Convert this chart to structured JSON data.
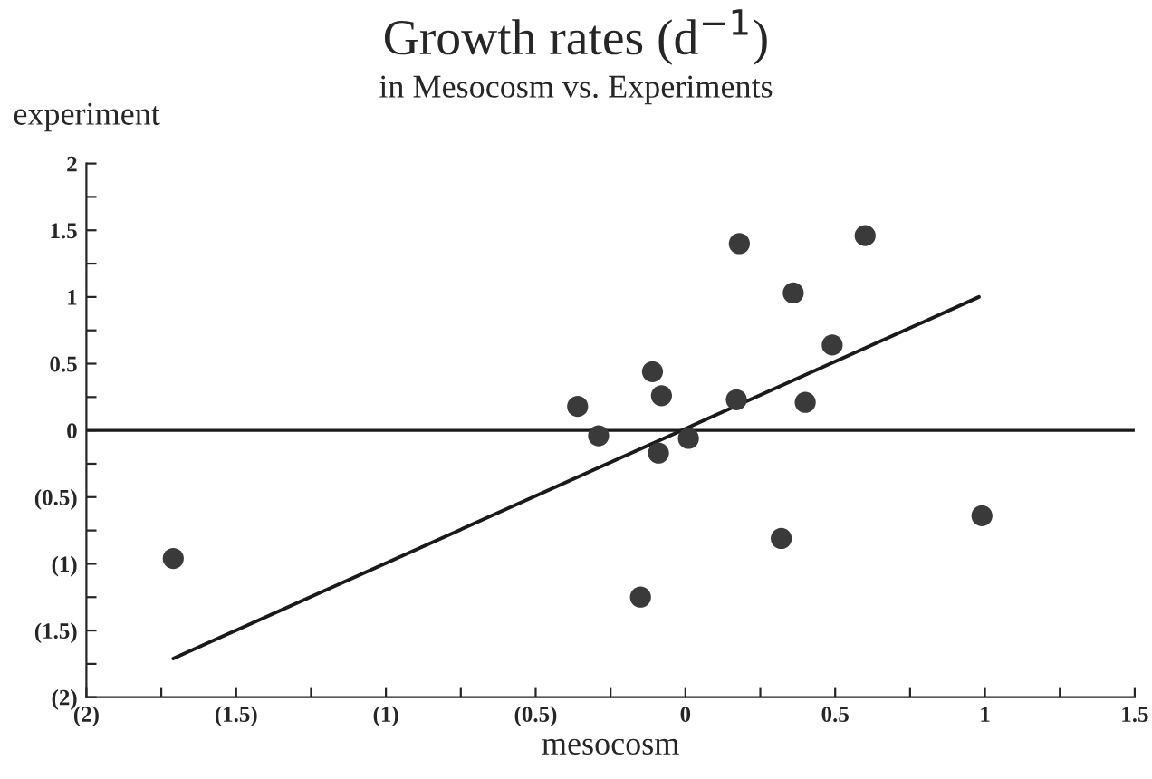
{
  "chart_data": {
    "type": "scatter",
    "title": "Growth rates (d$^{−1}$)",
    "subtitle": "in Mesocosm vs. Experiments",
    "xlabel": "mesocosm",
    "ylabel": "experiment",
    "series": [
      {
        "color": "#3a3a3a",
        "marker": "circle",
        "x": [
          -1.71,
          -0.36,
          -0.29,
          -0.11,
          -0.08,
          -0.09,
          0.01,
          -0.15,
          0.17,
          0.32,
          0.4,
          0.49,
          0.36,
          0.99,
          0.18,
          0.6
        ],
        "values": [
          -0.96,
          0.18,
          -0.04,
          0.44,
          0.26,
          -0.17,
          -0.06,
          -1.25,
          0.23,
          -0.81,
          0.21,
          0.64,
          1.03,
          -0.64,
          1.4,
          1.46
        ]
      },
      {
        "type": "line",
        "color": "#1a1a1a",
        "marker": "none",
        "x": [
          -1.71,
          0.98
        ],
        "values": [
          -1.71,
          1.0
        ]
      }
    ],
    "xlim": [
      -2,
      1.5
    ],
    "ylim": [
      -2,
      2
    ],
    "xticks": [
      {
        "value": -2,
        "label": "(2)"
      },
      {
        "value": -1.75,
        "label": null
      },
      {
        "value": -1.5,
        "label": "(1.5)"
      },
      {
        "value": -1.25,
        "label": null
      },
      {
        "value": -1,
        "label": "(1)"
      },
      {
        "value": -0.75,
        "label": null
      },
      {
        "value": -0.5,
        "label": "(0.5)"
      },
      {
        "value": -0.25,
        "label": null
      },
      0,
      {
        "value": 0.25,
        "label": null
      },
      0.5,
      {
        "value": 0.75,
        "label": null
      },
      1,
      {
        "value": 1.25,
        "label": null
      },
      1.5
    ],
    "yticks": [
      {
        "value": -2,
        "label": "(2)"
      },
      {
        "value": -1.75,
        "label": null
      },
      {
        "value": -1.5,
        "label": "(1.5)"
      },
      {
        "value": -1.25,
        "label": null
      },
      {
        "value": -1,
        "label": "(1)"
      },
      {
        "value": -0.75,
        "label": null
      },
      {
        "value": -0.5,
        "label": "(0.5)"
      },
      {
        "value": -0.25,
        "label": null
      },
      0,
      {
        "value": 0.25,
        "label": null
      },
      0.5,
      {
        "value": 0.75,
        "label": null
      },
      1,
      {
        "value": 1.25,
        "label": null
      },
      1.5,
      {
        "value": 1.75,
        "label": null
      },
      2
    ],
    "ref_lines": [
      {
        "axis": "y",
        "value": 0,
        "color": "#1a1a1a"
      }
    ],
    "grid": false,
    "legend": false
  }
}
